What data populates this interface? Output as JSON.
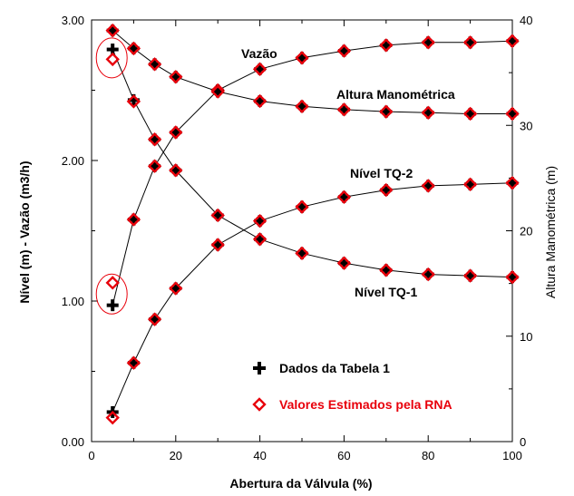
{
  "chart_data": {
    "type": "scatter",
    "x_axis": {
      "label": "Abertura da Válvula (%)",
      "range": [
        0,
        100
      ],
      "ticks": [
        "0",
        "20",
        "40",
        "60",
        "80",
        "100"
      ]
    },
    "y_axis_left": {
      "label": "Nível (m) - Vazão (m3/h)",
      "range": [
        0,
        3
      ],
      "ticks": [
        "0.00",
        "1.00",
        "2.00",
        "3.00"
      ]
    },
    "y_axis_right": {
      "label": "Altura Manométrica (m)",
      "range": [
        0,
        40
      ],
      "ticks": [
        "0",
        "10",
        "20",
        "30",
        "40"
      ]
    },
    "grid": false,
    "legend": {
      "placement": "bottom-right",
      "entries": [
        {
          "label": "Dados da Tabela 1",
          "marker": "plus",
          "color": "#000000"
        },
        {
          "label": "Valores Estimados pela RNA",
          "marker": "diamond",
          "color": "#e8000b"
        }
      ]
    },
    "annotations": [
      "Vazão",
      "Altura Manométrica",
      "Nível TQ-2",
      "Nível TQ-1"
    ],
    "highlights": [
      {
        "shape": "ellipse",
        "x": 5,
        "y": 2.73,
        "color": "#e8000b"
      },
      {
        "shape": "ellipse",
        "x": 5,
        "y": 1.05,
        "color": "#e8000b"
      }
    ],
    "series": [
      {
        "name": "Vazão",
        "axis": "left",
        "x": [
          5,
          10,
          15,
          20,
          30,
          40,
          50,
          60,
          70,
          80,
          90,
          100
        ],
        "data": [
          0.97,
          1.58,
          1.96,
          2.2,
          2.5,
          2.65,
          2.73,
          2.78,
          2.82,
          2.84,
          2.84,
          2.85
        ],
        "estimated": [
          1.13,
          1.58,
          1.96,
          2.2,
          2.5,
          2.65,
          2.73,
          2.78,
          2.82,
          2.84,
          2.84,
          2.85
        ]
      },
      {
        "name": "Altura Manométrica",
        "axis": "right",
        "x": [
          5,
          10,
          15,
          20,
          30,
          40,
          50,
          60,
          70,
          80,
          90,
          100
        ],
        "data": [
          39.0,
          37.3,
          35.8,
          34.6,
          33.2,
          32.3,
          31.8,
          31.5,
          31.3,
          31.2,
          31.1,
          31.1
        ],
        "estimated": [
          39.0,
          37.3,
          35.8,
          34.6,
          33.2,
          32.3,
          31.8,
          31.5,
          31.3,
          31.2,
          31.1,
          31.1
        ]
      },
      {
        "name": "Nível TQ-2",
        "axis": "left",
        "x": [
          5,
          10,
          15,
          20,
          30,
          40,
          50,
          60,
          70,
          80,
          90,
          100
        ],
        "data": [
          0.21,
          0.56,
          0.87,
          1.09,
          1.4,
          1.57,
          1.67,
          1.74,
          1.79,
          1.82,
          1.83,
          1.84
        ],
        "estimated": [
          0.17,
          0.56,
          0.87,
          1.09,
          1.4,
          1.57,
          1.67,
          1.74,
          1.79,
          1.82,
          1.83,
          1.84
        ]
      },
      {
        "name": "Nível TQ-1",
        "axis": "left",
        "x": [
          5,
          10,
          15,
          20,
          30,
          40,
          50,
          60,
          70,
          80,
          90,
          100
        ],
        "data": [
          2.79,
          2.43,
          2.15,
          1.93,
          1.61,
          1.44,
          1.34,
          1.27,
          1.22,
          1.19,
          1.18,
          1.17
        ],
        "estimated": [
          2.72,
          2.42,
          2.15,
          1.93,
          1.61,
          1.44,
          1.34,
          1.27,
          1.22,
          1.19,
          1.18,
          1.17
        ]
      }
    ]
  }
}
